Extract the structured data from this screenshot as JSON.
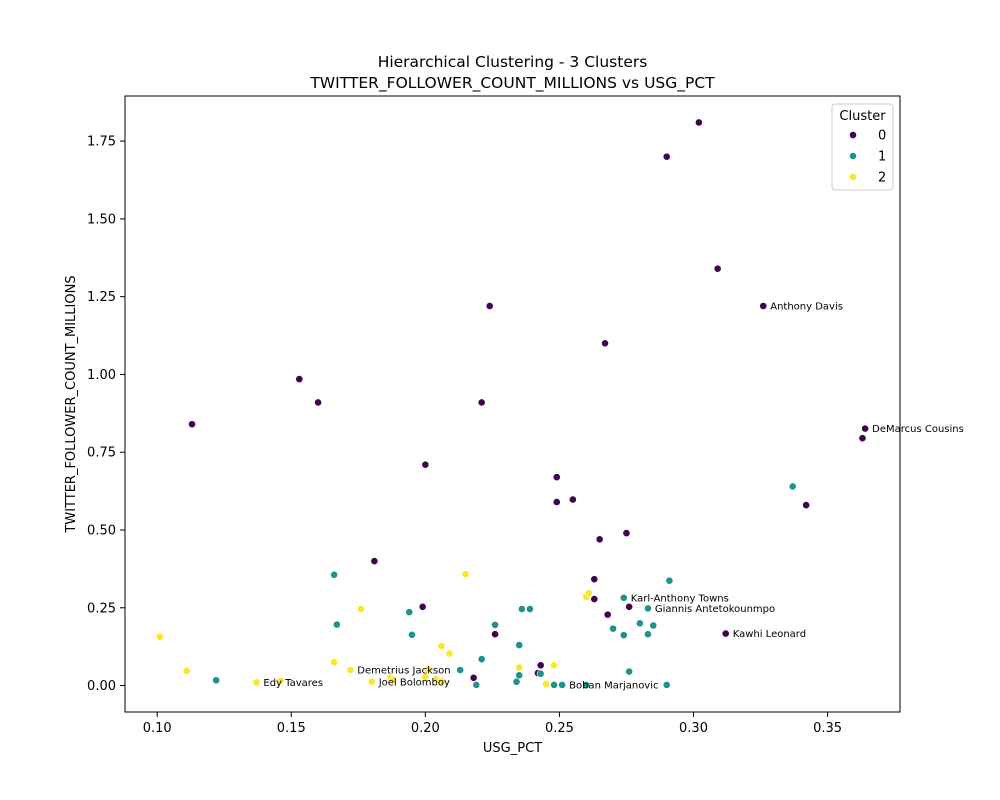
{
  "chart_data": {
    "type": "scatter",
    "title": "Hierarchical Clustering - 3 Clusters",
    "subtitle": "TWITTER_FOLLOWER_COUNT_MILLIONS vs USG_PCT",
    "xlabel": "USG_PCT",
    "ylabel": "TWITTER_FOLLOWER_COUNT_MILLIONS",
    "xlim": [
      0.088,
      0.377
    ],
    "ylim": [
      -0.085,
      1.895
    ],
    "xticks": [
      0.1,
      0.15,
      0.2,
      0.25,
      0.3,
      0.35
    ],
    "xtick_labels": [
      "0.10",
      "0.15",
      "0.20",
      "0.25",
      "0.30",
      "0.35"
    ],
    "yticks": [
      0.0,
      0.25,
      0.5,
      0.75,
      1.0,
      1.25,
      1.5,
      1.75
    ],
    "ytick_labels": [
      "0.00",
      "0.25",
      "0.50",
      "0.75",
      "1.00",
      "1.25",
      "1.50",
      "1.75"
    ],
    "grid": false,
    "legend": {
      "title": "Cluster",
      "placement": "top-right",
      "entries": [
        "0",
        "1",
        "2"
      ]
    },
    "colors": [
      "#440154",
      "#21918c",
      "#fde725"
    ],
    "series": [
      {
        "name": "0",
        "points": [
          [
            0.113,
            0.84
          ],
          [
            0.153,
            0.985
          ],
          [
            0.16,
            0.91
          ],
          [
            0.181,
            0.4
          ],
          [
            0.199,
            0.253
          ],
          [
            0.2,
            0.71
          ],
          [
            0.218,
            0.025
          ],
          [
            0.221,
            0.91
          ],
          [
            0.224,
            1.22
          ],
          [
            0.226,
            0.165
          ],
          [
            0.242,
            0.04
          ],
          [
            0.243,
            0.065
          ],
          [
            0.249,
            0.67
          ],
          [
            0.249,
            0.59
          ],
          [
            0.255,
            0.598
          ],
          [
            0.263,
            0.342
          ],
          [
            0.263,
            0.278
          ],
          [
            0.265,
            0.47
          ],
          [
            0.267,
            1.1
          ],
          [
            0.268,
            0.228
          ],
          [
            0.275,
            0.49
          ],
          [
            0.276,
            0.253
          ],
          [
            0.29,
            1.7
          ],
          [
            0.302,
            1.81
          ],
          [
            0.309,
            1.34
          ],
          [
            0.312,
            0.167
          ],
          [
            0.326,
            1.22
          ],
          [
            0.342,
            0.58
          ],
          [
            0.363,
            0.795
          ],
          [
            0.364,
            0.826
          ]
        ]
      },
      {
        "name": "1",
        "points": [
          [
            0.122,
            0.017
          ],
          [
            0.166,
            0.356
          ],
          [
            0.167,
            0.196
          ],
          [
            0.194,
            0.236
          ],
          [
            0.195,
            0.163
          ],
          [
            0.213,
            0.05
          ],
          [
            0.219,
            0.002
          ],
          [
            0.221,
            0.085
          ],
          [
            0.226,
            0.195
          ],
          [
            0.234,
            0.012
          ],
          [
            0.235,
            0.13
          ],
          [
            0.235,
            0.033
          ],
          [
            0.236,
            0.246
          ],
          [
            0.239,
            0.246
          ],
          [
            0.243,
            0.038
          ],
          [
            0.248,
            0.002
          ],
          [
            0.251,
            0.002
          ],
          [
            0.26,
            0.002
          ],
          [
            0.27,
            0.183
          ],
          [
            0.274,
            0.282
          ],
          [
            0.274,
            0.162
          ],
          [
            0.276,
            0.045
          ],
          [
            0.28,
            0.2
          ],
          [
            0.283,
            0.248
          ],
          [
            0.283,
            0.165
          ],
          [
            0.285,
            0.193
          ],
          [
            0.29,
            0.002
          ],
          [
            0.291,
            0.337
          ],
          [
            0.337,
            0.64
          ]
        ]
      },
      {
        "name": "2",
        "points": [
          [
            0.101,
            0.157
          ],
          [
            0.111,
            0.047
          ],
          [
            0.137,
            0.01
          ],
          [
            0.146,
            0.015
          ],
          [
            0.166,
            0.075
          ],
          [
            0.172,
            0.05
          ],
          [
            0.176,
            0.246
          ],
          [
            0.18,
            0.012
          ],
          [
            0.187,
            0.025
          ],
          [
            0.188,
            0.018
          ],
          [
            0.2,
            0.028
          ],
          [
            0.201,
            0.052
          ],
          [
            0.204,
            0.02
          ],
          [
            0.206,
            0.127
          ],
          [
            0.206,
            0.012
          ],
          [
            0.209,
            0.103
          ],
          [
            0.215,
            0.358
          ],
          [
            0.235,
            0.058
          ],
          [
            0.245,
            0.005
          ],
          [
            0.248,
            0.065
          ],
          [
            0.26,
            0.285
          ],
          [
            0.261,
            0.297
          ]
        ]
      }
    ],
    "annotations": [
      {
        "text": "Anthony Davis",
        "x": 0.326,
        "y": 1.22
      },
      {
        "text": "DeMarcus Cousins",
        "x": 0.364,
        "y": 0.826
      },
      {
        "text": "Karl-Anthony Towns",
        "x": 0.274,
        "y": 0.282
      },
      {
        "text": "Giannis Antetokounmpo",
        "x": 0.283,
        "y": 0.248
      },
      {
        "text": "Kawhi Leonard",
        "x": 0.312,
        "y": 0.167
      },
      {
        "text": "Demetrius Jackson",
        "x": 0.172,
        "y": 0.05
      },
      {
        "text": "Joel Bolomboy",
        "x": 0.18,
        "y": 0.012
      },
      {
        "text": "Edy Tavares",
        "x": 0.137,
        "y": 0.01
      },
      {
        "text": "Boban Marjanovic",
        "x": 0.251,
        "y": 0.002
      }
    ]
  }
}
